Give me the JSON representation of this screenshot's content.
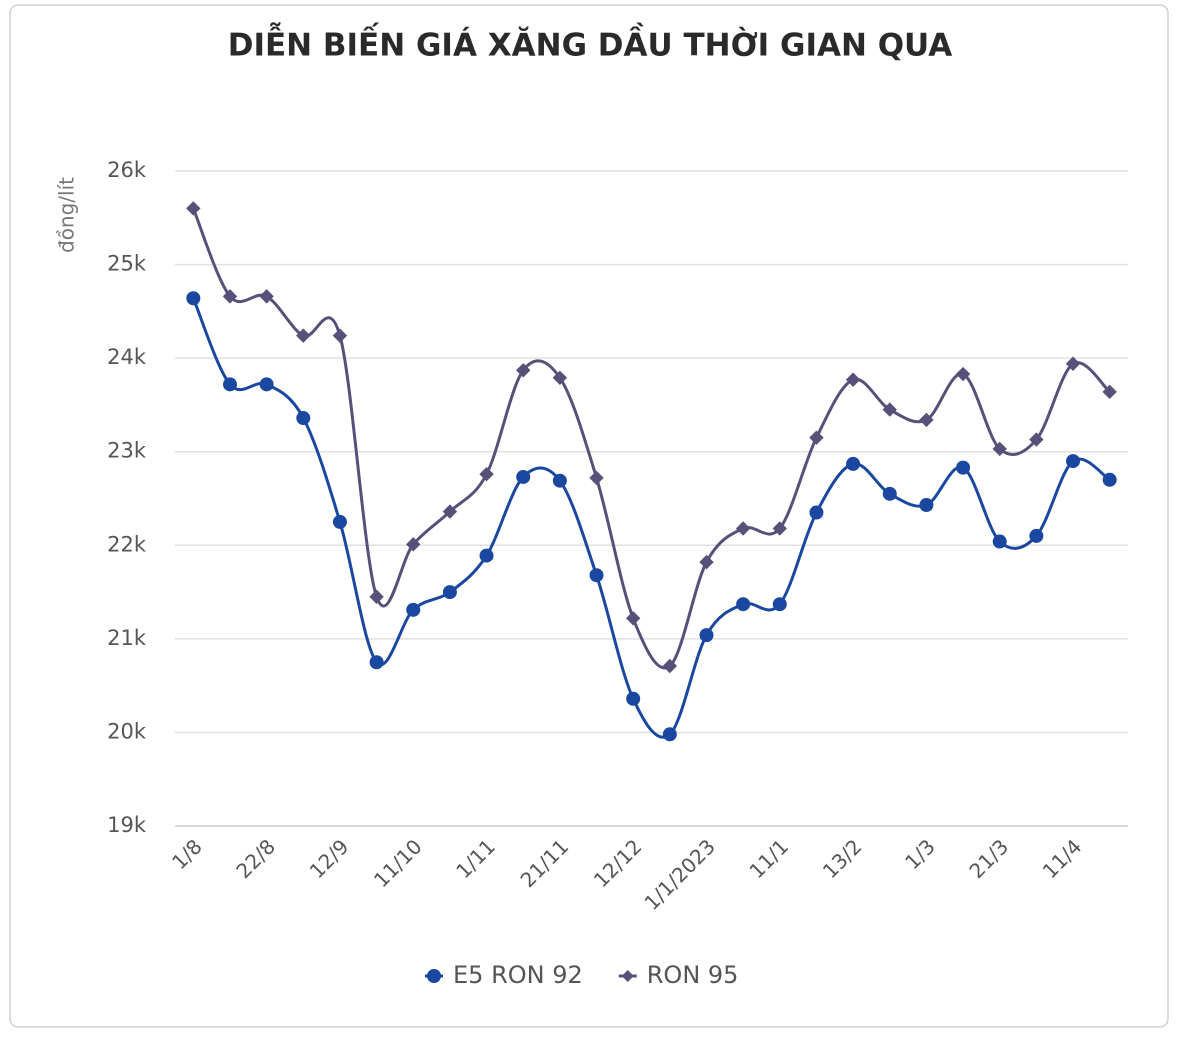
{
  "chart_data": {
    "type": "line",
    "title": "DIỄN BIẾN GIÁ XĂNG DẦU THỜI GIAN QUA",
    "y_label": "đồng/lít",
    "categories": [
      "1/8",
      null,
      "22/8",
      null,
      "12/9",
      null,
      "11/10",
      null,
      "1/11",
      null,
      "21/11",
      null,
      "12/12",
      null,
      "1/1/2023",
      null,
      "11/1",
      null,
      "13/2",
      null,
      "1/3",
      null,
      "21/3",
      null,
      "11/4",
      null
    ],
    "series": [
      {
        "name": "E5 RON 92",
        "color": "#1a47a0",
        "marker": "circle",
        "values": [
          24640,
          23720,
          23720,
          23360,
          22250,
          20750,
          21310,
          21500,
          21890,
          22730,
          22690,
          21680,
          20360,
          19980,
          21040,
          21370,
          21370,
          22350,
          22870,
          22550,
          22430,
          22830,
          22040,
          22100,
          22900,
          22700
        ]
      },
      {
        "name": "RON 95",
        "color": "#585078",
        "marker": "diamond",
        "values": [
          25600,
          24660,
          24660,
          24240,
          24240,
          21450,
          22010,
          22360,
          22760,
          23870,
          23790,
          22720,
          21220,
          20710,
          21820,
          22180,
          22180,
          23150,
          23770,
          23450,
          23340,
          23830,
          23030,
          23130,
          23940,
          23640
        ]
      }
    ],
    "ylim": [
      19000,
      26000
    ],
    "yticks": [
      {
        "value": 19000,
        "label": "19k"
      },
      {
        "value": 20000,
        "label": "20k"
      },
      {
        "value": 21000,
        "label": "21k"
      },
      {
        "value": 22000,
        "label": "22k"
      },
      {
        "value": 23000,
        "label": "23k"
      },
      {
        "value": 24000,
        "label": "24k"
      },
      {
        "value": 25000,
        "label": "25k"
      },
      {
        "value": 26000,
        "label": "26k"
      }
    ],
    "grid": true,
    "legend": "bottom"
  }
}
